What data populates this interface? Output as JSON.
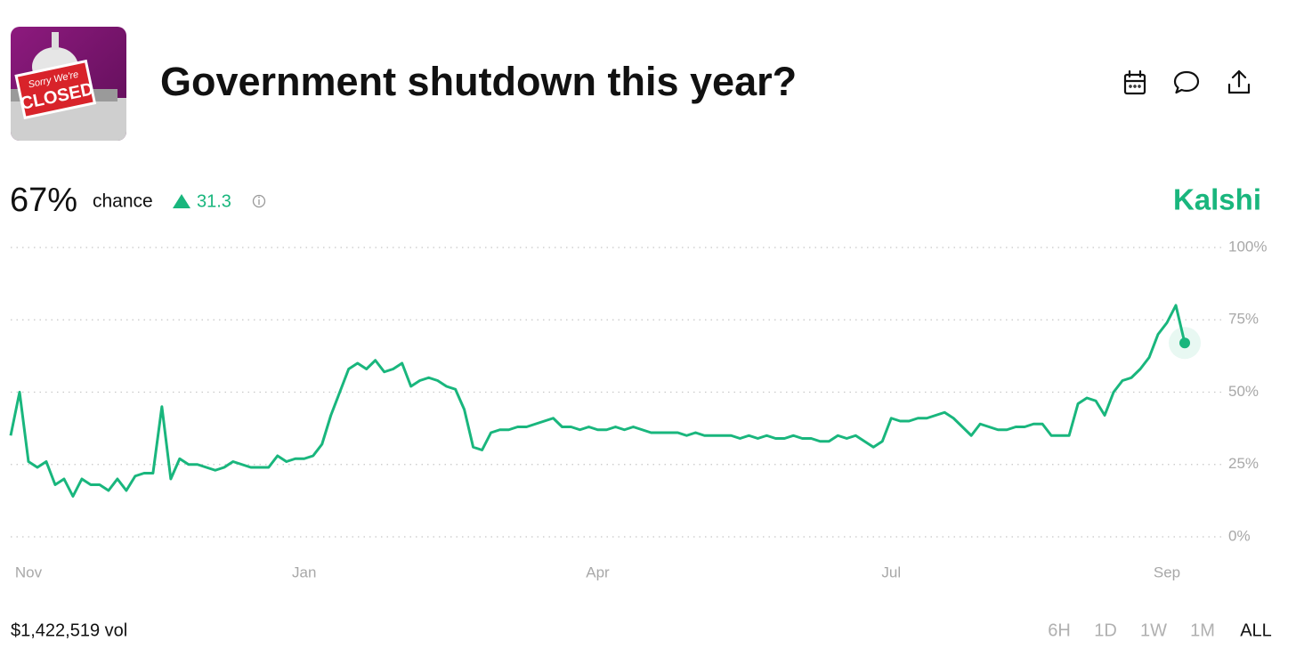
{
  "header": {
    "title": "Government shutdown this year?",
    "thumbnail": {
      "line1": "Sorry We're",
      "line2": "CLOSED"
    }
  },
  "stats": {
    "probability": "67%",
    "probability_label": "chance",
    "change": 31.3,
    "brand": "Kalshi"
  },
  "footer": {
    "volume": "$1,422,519 vol",
    "ranges": [
      "6H",
      "1D",
      "1W",
      "1M",
      "ALL"
    ]
  },
  "chart_data": {
    "type": "line",
    "color": "#19b67d",
    "grid": true,
    "values": [
      35,
      50,
      26,
      24,
      26,
      18,
      20,
      14,
      20,
      18,
      18,
      16,
      20,
      16,
      21,
      22,
      22,
      45,
      20,
      27,
      25,
      25,
      24,
      23,
      24,
      26,
      25,
      24,
      24,
      24,
      28,
      26,
      27,
      27,
      28,
      32,
      42,
      50,
      58,
      60,
      58,
      61,
      57,
      58,
      60,
      52,
      54,
      55,
      54,
      52,
      51,
      44,
      31,
      30,
      36,
      37,
      37,
      38,
      38,
      39,
      40,
      41,
      38,
      38,
      37,
      38,
      37,
      37,
      38,
      37,
      38,
      37,
      36,
      36,
      36,
      36,
      35,
      36,
      35,
      35,
      35,
      35,
      34,
      35,
      34,
      35,
      34,
      34,
      35,
      34,
      34,
      33,
      33,
      35,
      34,
      35,
      33,
      31,
      33,
      41,
      40,
      40,
      41,
      41,
      42,
      43,
      41,
      38,
      35,
      39,
      38,
      37,
      37,
      38,
      38,
      39,
      39,
      35,
      35,
      35,
      46,
      48,
      47,
      42,
      50,
      54,
      55,
      58,
      62,
      70,
      74,
      80,
      67
    ],
    "xlim": [
      0,
      132
    ],
    "xticks": [
      {
        "value": 2,
        "label": "Nov"
      },
      {
        "value": 33,
        "label": "Jan"
      },
      {
        "value": 66,
        "label": "Apr"
      },
      {
        "value": 99,
        "label": "Jul"
      },
      {
        "value": 130,
        "label": "Sep"
      }
    ],
    "ylim": [
      0,
      100
    ],
    "yticks": [
      {
        "value": 0,
        "label": "0%"
      },
      {
        "value": 25,
        "label": "25%"
      },
      {
        "value": 50,
        "label": "50%"
      },
      {
        "value": 75,
        "label": "75%"
      },
      {
        "value": 100,
        "label": "100%"
      }
    ]
  }
}
